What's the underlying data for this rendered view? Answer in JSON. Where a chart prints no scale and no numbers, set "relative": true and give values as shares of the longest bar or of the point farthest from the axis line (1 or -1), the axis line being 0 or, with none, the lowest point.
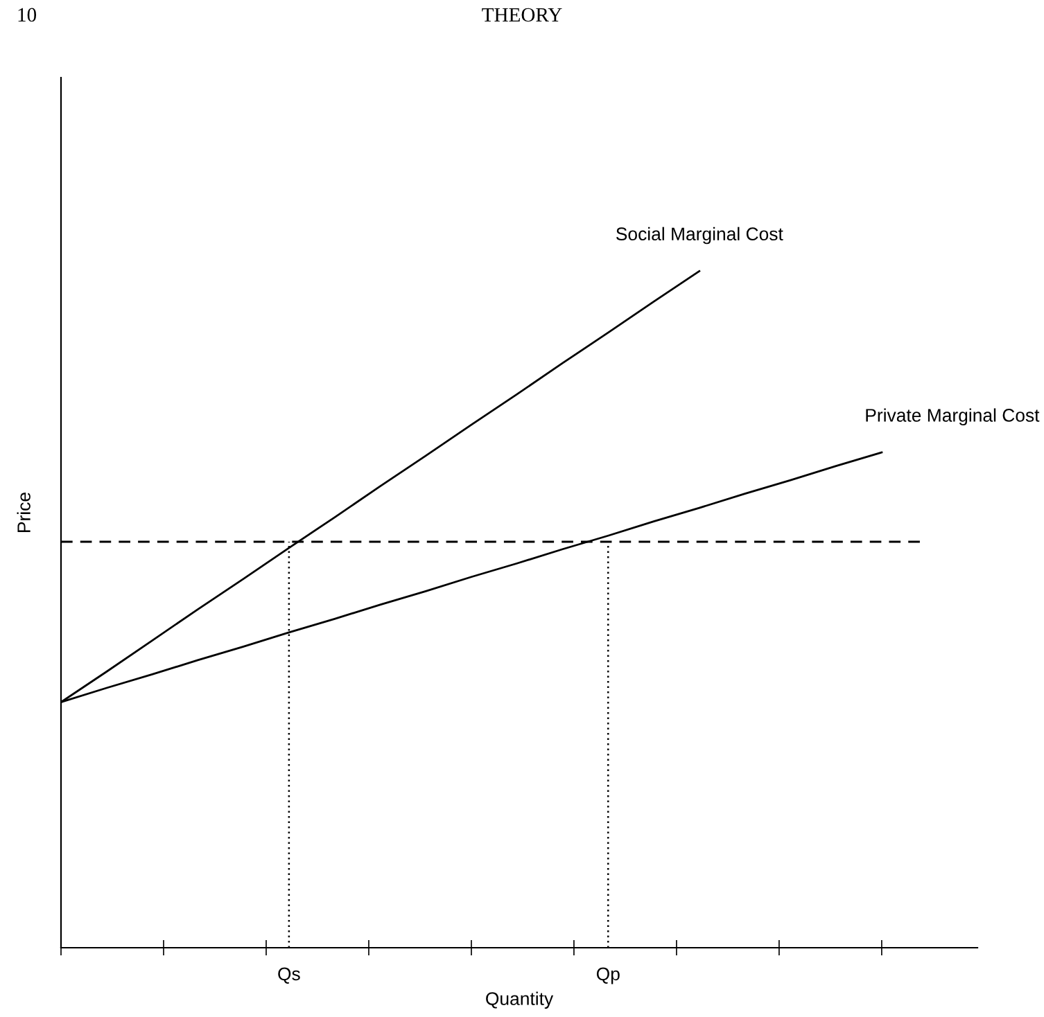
{
  "chart_data": {
    "type": "line",
    "relative": true,
    "xlabel": "Quantity",
    "ylabel": "Price",
    "annotations": [
      "10",
      "THEORY"
    ],
    "categories": [
      null,
      null,
      null,
      null,
      null,
      "Qs",
      null,
      null,
      null,
      null,
      null,
      null,
      "Qp",
      null,
      null,
      null,
      null,
      null,
      null,
      null
    ],
    "grid": false,
    "legend": false,
    "marker": "none",
    "line_style": "solid",
    "series": [
      {
        "name": "Social Marginal Cost",
        "color": "#000000",
        "values": [
          0.363,
          0.408,
          0.454,
          0.5,
          0.545,
          0.591,
          0.636,
          0.682,
          0.727,
          0.773,
          0.818,
          0.864,
          0.909,
          0.955,
          1.0,
          null,
          null,
          null,
          null,
          null
        ]
      },
      {
        "name": "Private Marginal Cost",
        "color": "#000000",
        "values": [
          0.363,
          0.384,
          0.404,
          0.425,
          0.445,
          0.466,
          0.486,
          0.507,
          0.527,
          0.548,
          0.568,
          0.589,
          0.609,
          0.63,
          0.65,
          0.671,
          0.691,
          0.712,
          0.732,
          null
        ]
      }
    ],
    "ref_lines": [
      {
        "axis": "y",
        "value": 0.6,
        "color": "#000000",
        "line_style": "dashed"
      },
      {
        "axis": "x",
        "value": "Qs",
        "color": "#000000",
        "line_style": "dotted"
      },
      {
        "axis": "x",
        "value": "Qp",
        "color": "#000000",
        "line_style": "dotted"
      }
    ]
  }
}
